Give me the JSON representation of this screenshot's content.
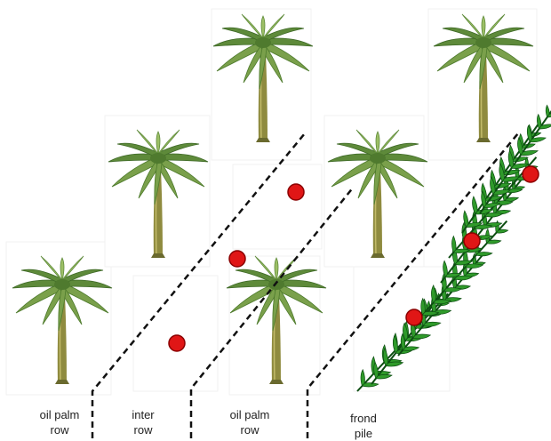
{
  "labels": {
    "oil_palm_row_1": [
      "oil palm",
      "row"
    ],
    "inter_row": [
      "inter",
      "row"
    ],
    "oil_palm_row_2": [
      "oil palm",
      "row"
    ],
    "frond_pile": [
      "frond",
      "pile"
    ]
  },
  "colors": {
    "palm_leaf": "#5e8a3a",
    "palm_leaf_light": "#9cbf66",
    "palm_trunk": "#8c8a3e",
    "frond": "#2f9a2a",
    "frond_edge": "#0d4d12",
    "marker": "#e01616",
    "marker_edge": "#8b0000",
    "dashed_line": "#111111"
  },
  "icons": {
    "tree": "oil-palm-tree-icon",
    "marker": "sample-point-marker",
    "pile": "frond-pile-icon"
  }
}
